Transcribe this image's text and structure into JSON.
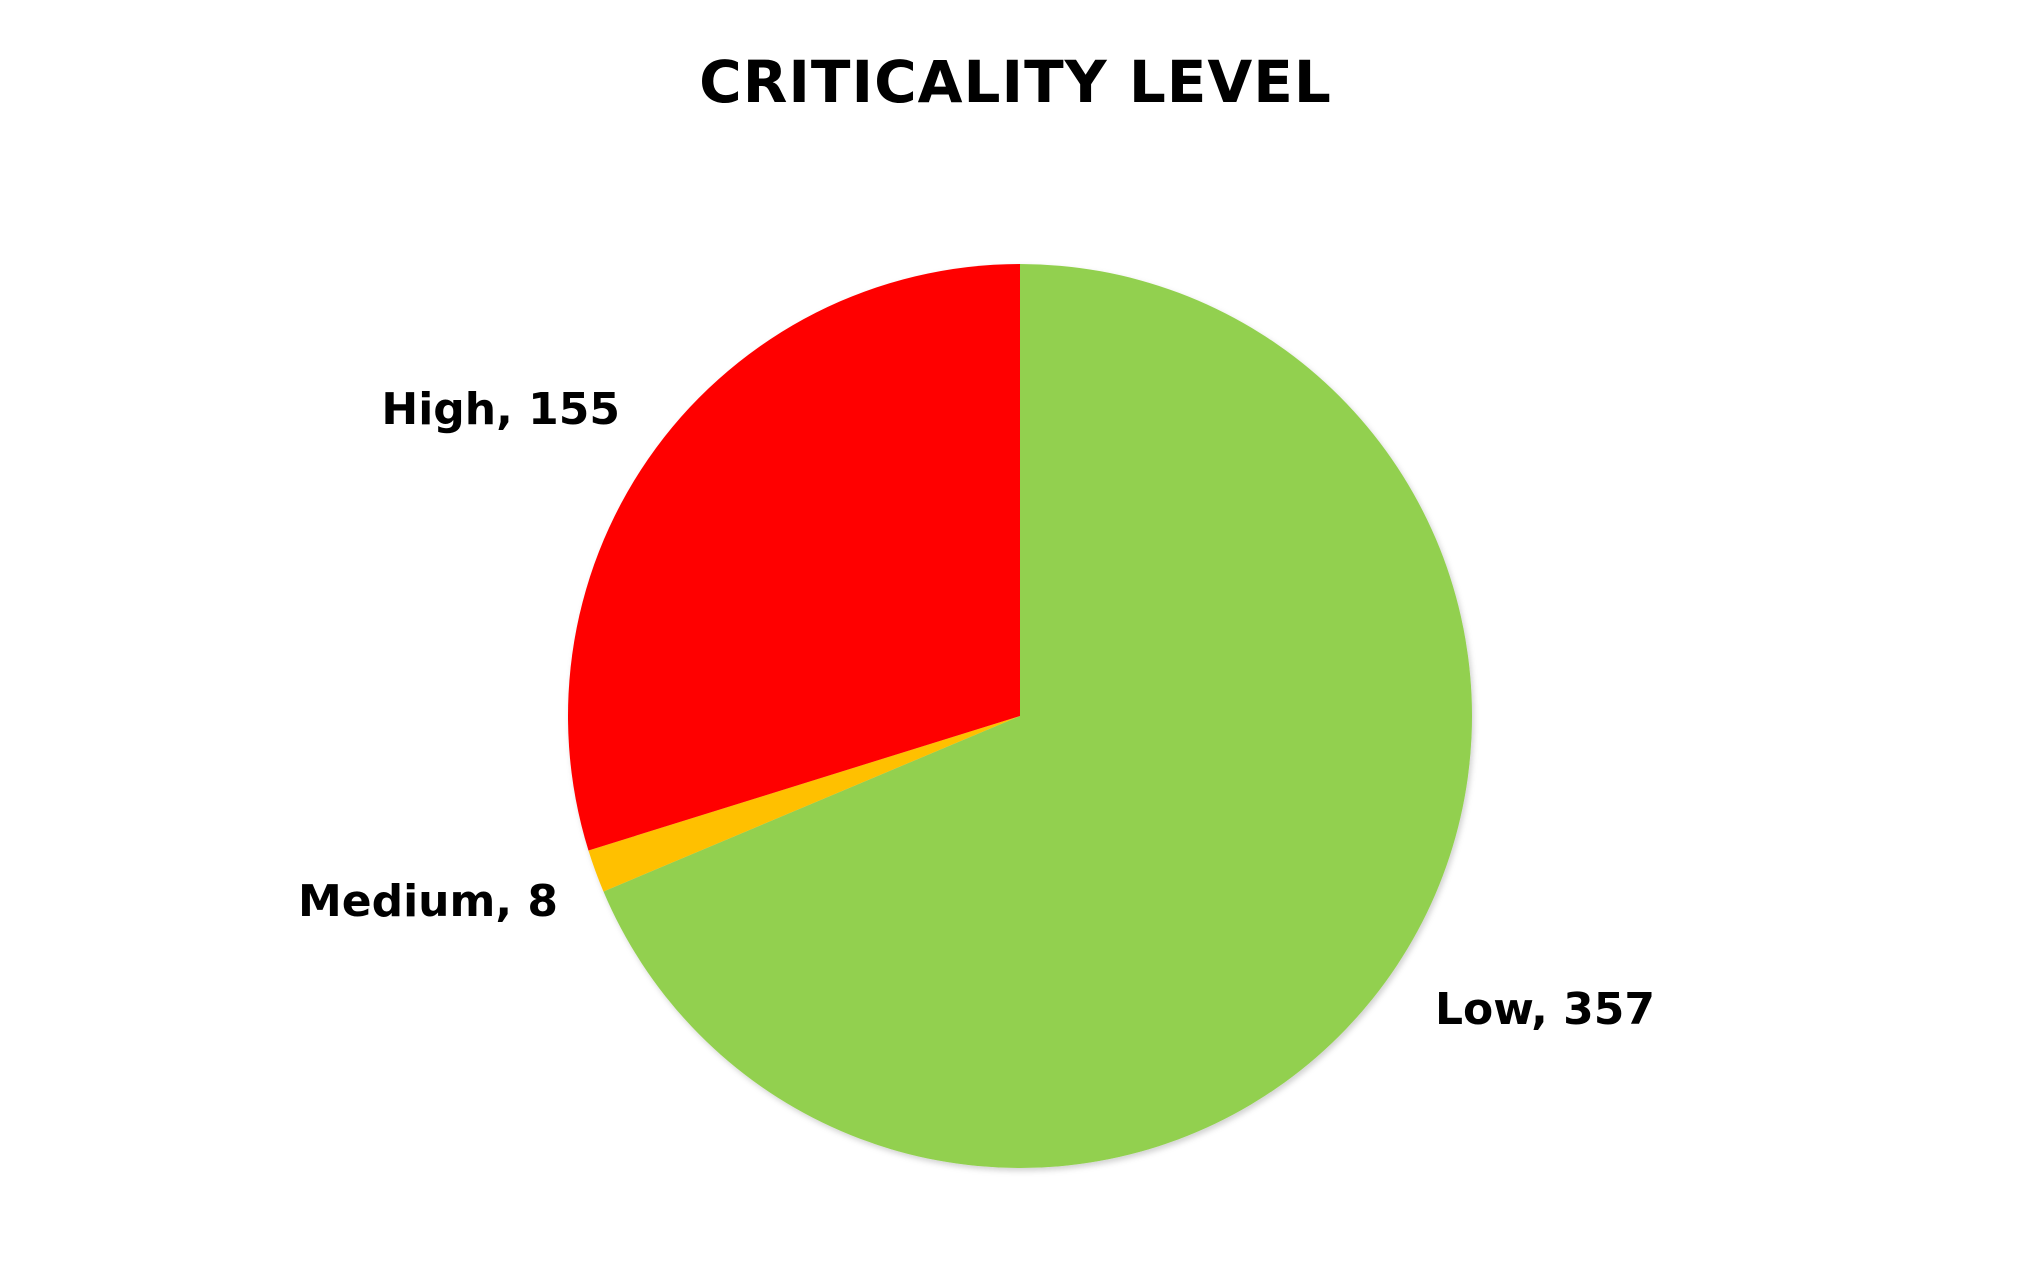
{
  "chart_data": {
    "type": "pie",
    "title": "CRITICALITY LEVEL",
    "categories": [
      "Low",
      "Medium",
      "High"
    ],
    "values": [
      357,
      8,
      155
    ],
    "colors": [
      "#92d050",
      "#ffc000",
      "#ff0000"
    ],
    "data_labels": [
      "Low, 357",
      "Medium, 8",
      "High, 155"
    ],
    "start_angle_deg": 0,
    "direction": "clockwise",
    "legend": "none"
  }
}
